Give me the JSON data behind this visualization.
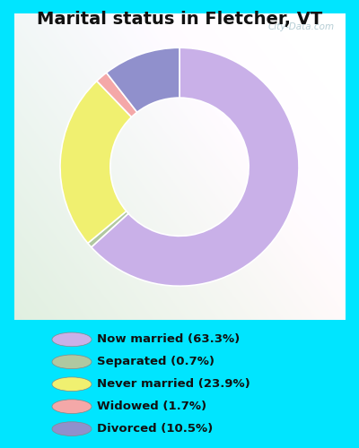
{
  "title": "Marital status in Fletcher, VT",
  "slices": [
    63.3,
    0.7,
    23.9,
    1.7,
    10.5
  ],
  "colors": [
    "#c9b0e8",
    "#b0c8a0",
    "#f0f070",
    "#f4a8a8",
    "#9090cc"
  ],
  "labels": [
    "Now married (63.3%)",
    "Separated (0.7%)",
    "Never married (23.9%)",
    "Widowed (1.7%)",
    "Divorced (10.5%)"
  ],
  "legend_colors": [
    "#c9b0e8",
    "#b0c8a0",
    "#f0f070",
    "#f4a8a8",
    "#9090cc"
  ],
  "bg_outer": "#00e5ff",
  "watermark": "City-Data.com",
  "title_fontsize": 14,
  "donut_width": 0.42,
  "startangle": 90
}
